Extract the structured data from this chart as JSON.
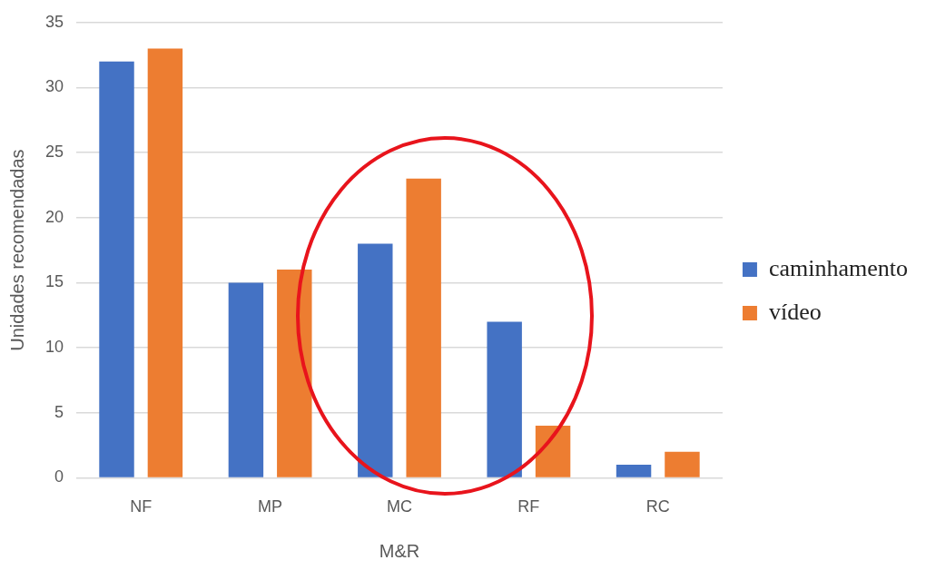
{
  "chart_data": {
    "type": "bar",
    "xlabel": "M&R",
    "ylabel": "Unidades recomendadas",
    "categories": [
      "NF",
      "MP",
      "MC",
      "RF",
      "RC"
    ],
    "series": [
      {
        "name": "caminhamento",
        "color": "#4472c4",
        "values": [
          32,
          15,
          18,
          12,
          1
        ]
      },
      {
        "name": "vídeo",
        "color": "#ed7d31",
        "values": [
          33,
          16,
          23,
          4,
          2
        ]
      }
    ],
    "ylim": [
      0,
      35
    ],
    "yticks": [
      0,
      5,
      10,
      15,
      20,
      25,
      30,
      35
    ],
    "grid": "y",
    "legend": "right"
  }
}
